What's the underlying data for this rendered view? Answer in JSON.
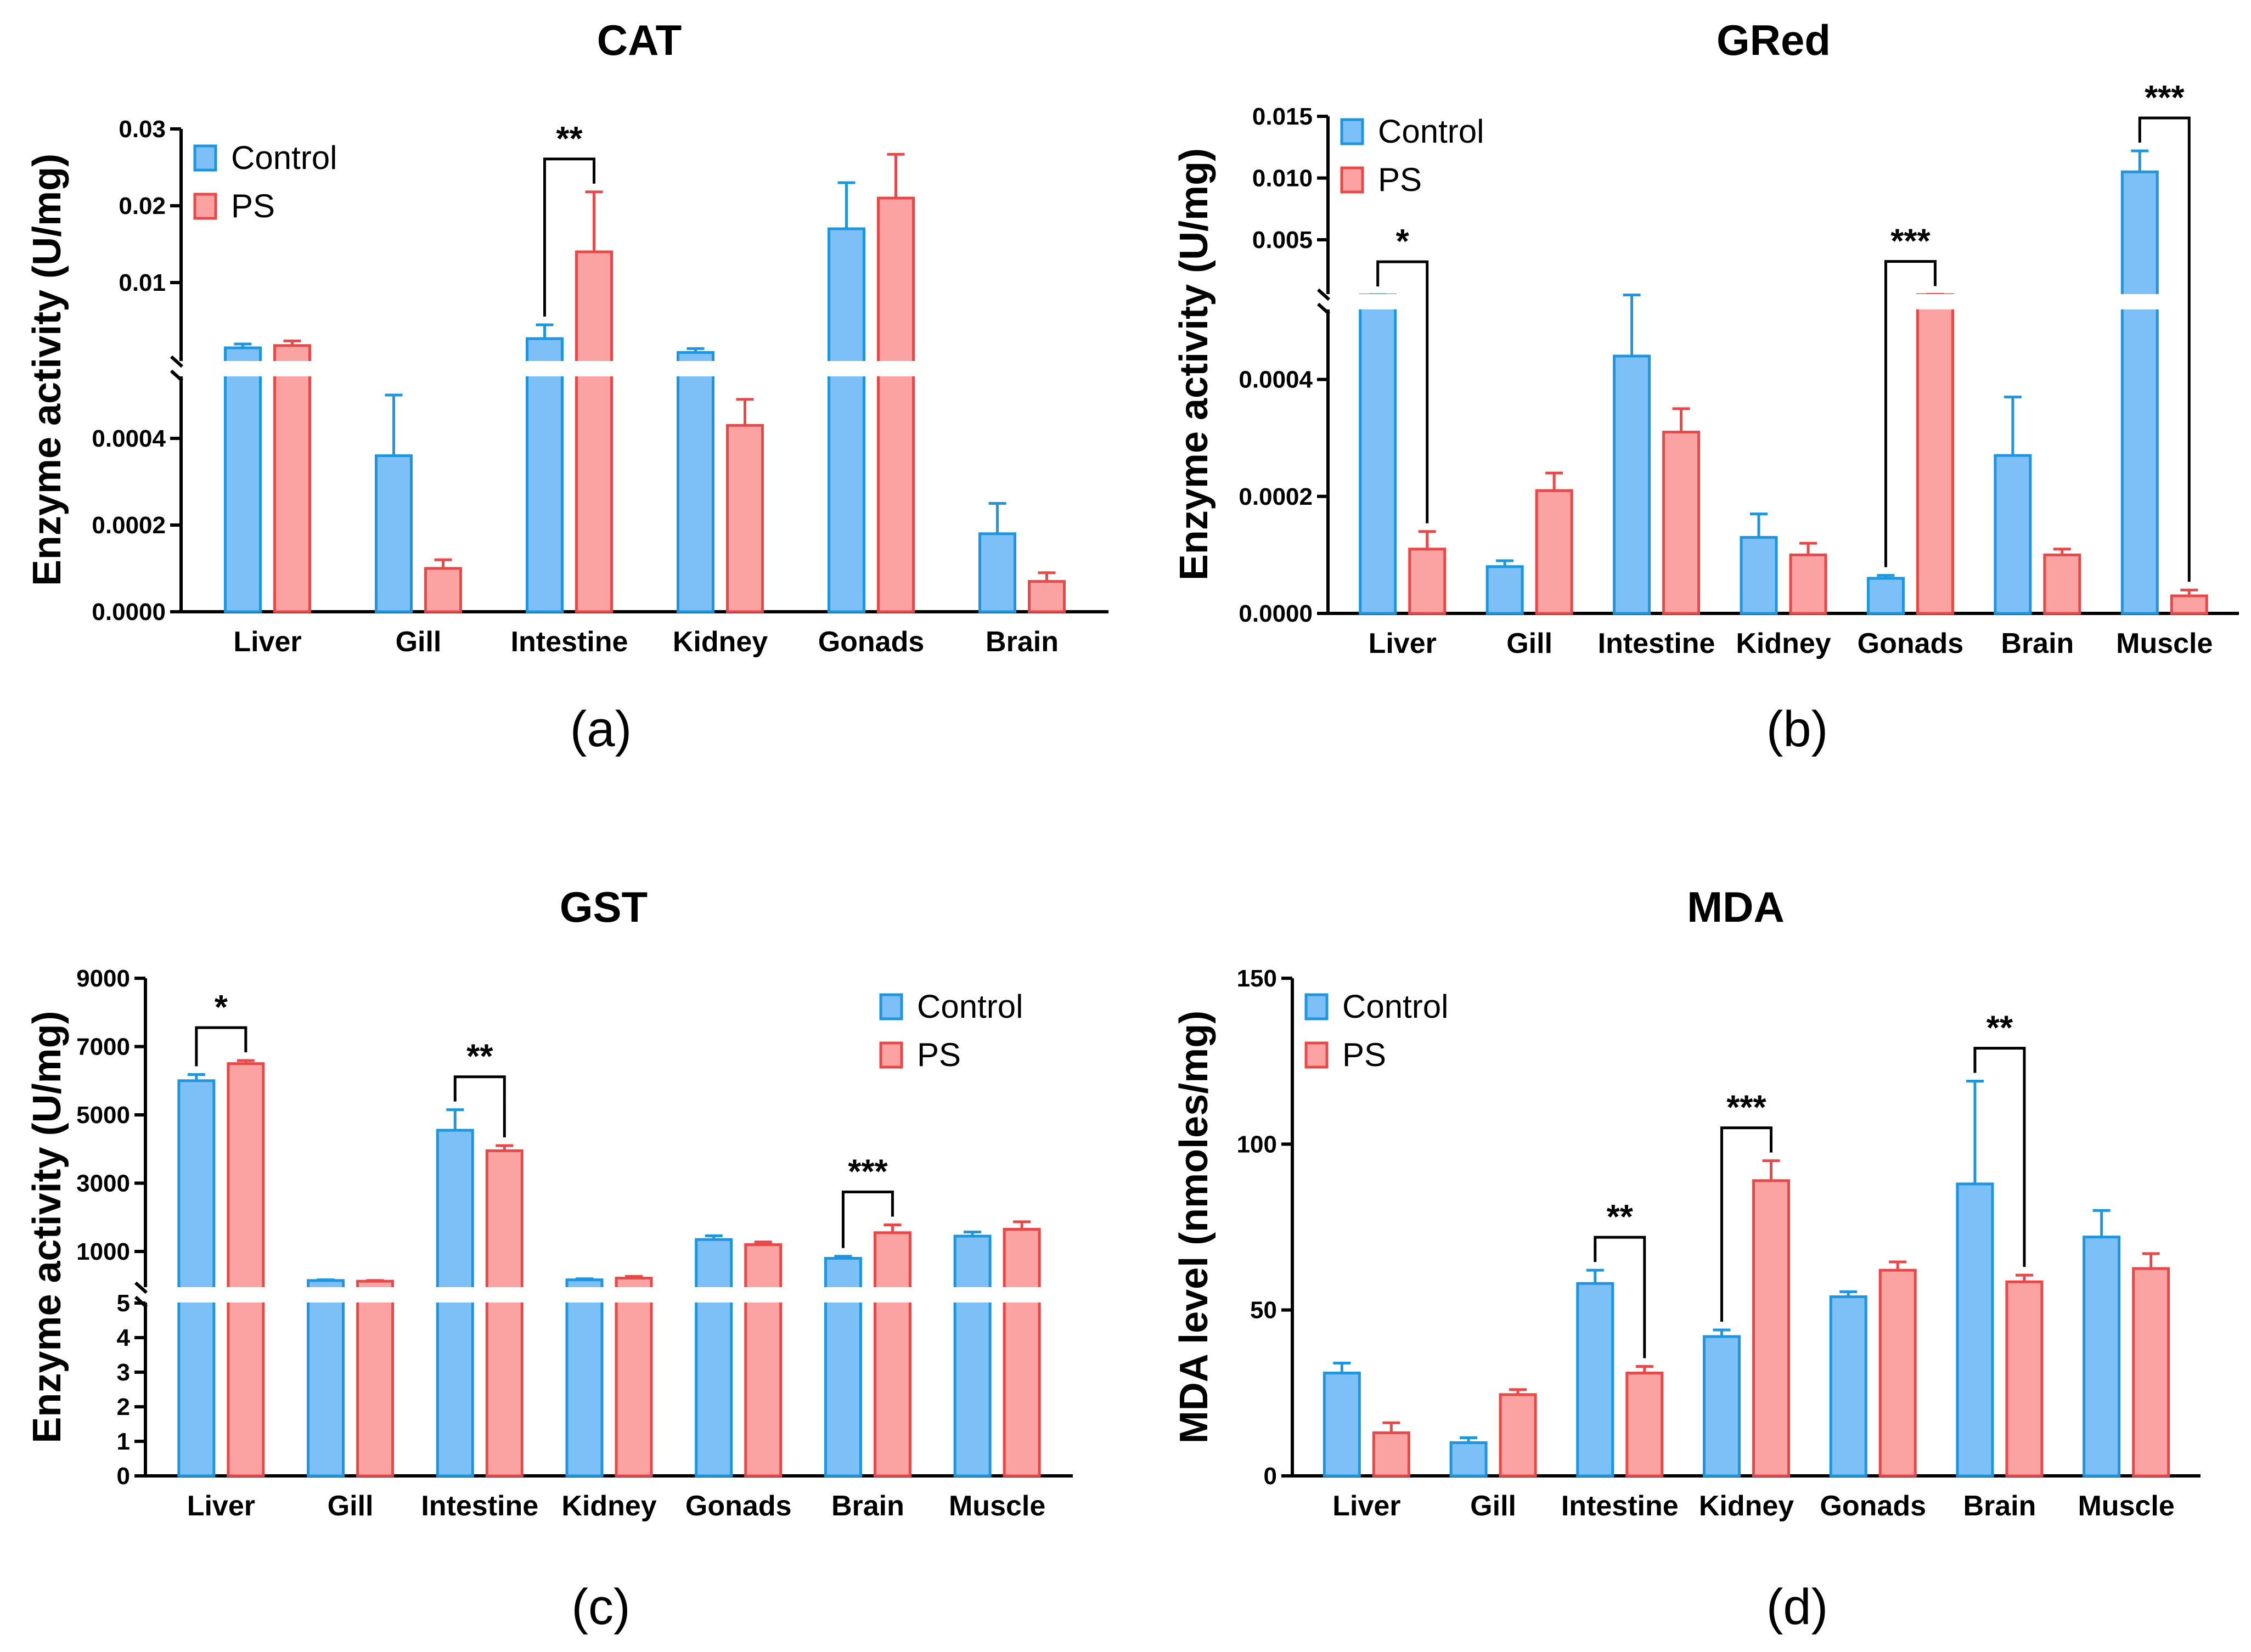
{
  "colors": {
    "control_fill": "#7DC0F7",
    "control_stroke": "#1E96DF",
    "ps_fill": "#FBA3A3",
    "ps_stroke": "#E84848"
  },
  "chart_data": [
    {
      "type": "bar",
      "panel_label": "(a)",
      "title": "CAT",
      "ylabel": "Enzyme activity (U/mg)",
      "categories": [
        "Liver",
        "Gill",
        "Intestine",
        "Kidney",
        "Gonads",
        "Brain"
      ],
      "broken_axis": {
        "lower_range": [
          0,
          0.0005
        ],
        "lower_ticks": [
          "0.0000",
          "0.0002",
          "0.0004"
        ],
        "lower_tick_values": [
          0,
          0.0002,
          0.0004
        ],
        "upper_range": [
          0,
          0.03
        ],
        "upper_ticks": [
          "0.01",
          "0.02",
          "0.03"
        ],
        "upper_tick_values": [
          0.01,
          0.02,
          0.03
        ]
      },
      "legend": [
        "Control",
        "PS"
      ],
      "legend_position": "top-left",
      "series": [
        {
          "name": "Control",
          "values": [
            0.0015,
            0.00036,
            0.0027,
            0.0009,
            0.017,
            0.00018
          ],
          "errors": [
            0.0005,
            0.00014,
            0.0018,
            0.0005,
            0.006,
            7e-05
          ]
        },
        {
          "name": "PS",
          "values": [
            0.0018,
            0.0001,
            0.014,
            0.00043,
            0.021,
            7e-05
          ],
          "errors": [
            0.0006,
            2e-05,
            0.0078,
            6e-05,
            0.0057,
            2e-05
          ]
        }
      ],
      "significance": [
        {
          "category": "Intestine",
          "label": "**"
        }
      ]
    },
    {
      "type": "bar",
      "panel_label": "(b)",
      "title": "GRed",
      "ylabel": "Enzyme activity (U/mg)",
      "categories": [
        "Liver",
        "Gill",
        "Intestine",
        "Kidney",
        "Gonads",
        "Brain",
        "Muscle"
      ],
      "broken_axis": {
        "lower_range": [
          0,
          0.0005
        ],
        "lower_ticks": [
          "0.0000",
          "0.0002",
          "0.0004"
        ],
        "lower_tick_values": [
          0,
          0.0002,
          0.0004
        ],
        "upper_range": [
          0,
          0.015
        ],
        "upper_ticks": [
          "0.005",
          "0.010",
          "0.015"
        ],
        "upper_tick_values": [
          0.005,
          0.01,
          0.015
        ]
      },
      "legend": [
        "Control",
        "PS"
      ],
      "legend_position": "top-left",
      "series": [
        {
          "name": "Control",
          "values": [
            0.00053,
            8e-05,
            0.00044,
            0.00013,
            6e-05,
            0.00027,
            0.0105
          ],
          "errors": [
            2e-05,
            1e-05,
            9e-05,
            4e-05,
            5e-06,
            0.0001,
            0.0017
          ]
        },
        {
          "name": "PS",
          "values": [
            0.00011,
            0.00021,
            0.00031,
            0.0001,
            0.00055,
            0.0001,
            3e-05
          ],
          "errors": [
            3e-05,
            3e-05,
            4e-05,
            2e-05,
            3e-05,
            1e-05,
            1e-05
          ]
        }
      ],
      "significance": [
        {
          "category": "Liver",
          "label": "*"
        },
        {
          "category": "Gonads",
          "label": "***"
        },
        {
          "category": "Muscle",
          "label": "***"
        }
      ]
    },
    {
      "type": "bar",
      "panel_label": "(c)",
      "title": "GST",
      "ylabel": "Enzyme activity (U/mg)",
      "categories": [
        "Liver",
        "Gill",
        "Intestine",
        "Kidney",
        "Gonads",
        "Brain",
        "Muscle"
      ],
      "broken_axis": {
        "lower_range": [
          0,
          5
        ],
        "lower_ticks": [
          "0",
          "1",
          "2",
          "3",
          "4",
          "5"
        ],
        "lower_tick_values": [
          0,
          1,
          2,
          3,
          4,
          5
        ],
        "upper_range": [
          0,
          9000
        ],
        "upper_ticks": [
          "1000",
          "3000",
          "5000",
          "7000",
          "9000"
        ],
        "upper_tick_values": [
          1000,
          3000,
          5000,
          7000,
          9000
        ]
      },
      "legend": [
        "Control",
        "PS"
      ],
      "legend_position": "top-right",
      "series": [
        {
          "name": "Control",
          "values": [
            6000,
            150,
            4550,
            170,
            1350,
            800,
            1450
          ],
          "errors": [
            180,
            20,
            600,
            30,
            110,
            60,
            120
          ]
        },
        {
          "name": "PS",
          "values": [
            6500,
            130,
            3950,
            220,
            1200,
            1550,
            1650
          ],
          "errors": [
            90,
            20,
            150,
            50,
            80,
            230,
            220
          ]
        }
      ],
      "significance": [
        {
          "category": "Liver",
          "label": "*"
        },
        {
          "category": "Intestine",
          "label": "**"
        },
        {
          "category": "Brain",
          "label": "***"
        }
      ]
    },
    {
      "type": "bar",
      "panel_label": "(d)",
      "title": "MDA",
      "ylabel": "MDA level (nmoles/mg)",
      "categories": [
        "Liver",
        "Gill",
        "Intestine",
        "Kidney",
        "Gonads",
        "Brain",
        "Muscle"
      ],
      "ylim": [
        0,
        150
      ],
      "yticks": [
        "0",
        "50",
        "100",
        "150"
      ],
      "ytick_values": [
        0,
        50,
        100,
        150
      ],
      "legend": [
        "Control",
        "PS"
      ],
      "legend_position": "top-left",
      "series": [
        {
          "name": "Control",
          "values": [
            31,
            10,
            58,
            42,
            54,
            88,
            72
          ],
          "errors": [
            3,
            1.5,
            4,
            2,
            1.5,
            31,
            8
          ]
        },
        {
          "name": "PS",
          "values": [
            13,
            24.5,
            31,
            89,
            62,
            58.5,
            62.5
          ],
          "errors": [
            3,
            1.5,
            2,
            6,
            2.5,
            2,
            4.5
          ]
        }
      ],
      "significance": [
        {
          "category": "Intestine",
          "label": "**"
        },
        {
          "category": "Kidney",
          "label": "***"
        },
        {
          "category": "Brain",
          "label": "**"
        }
      ]
    }
  ]
}
